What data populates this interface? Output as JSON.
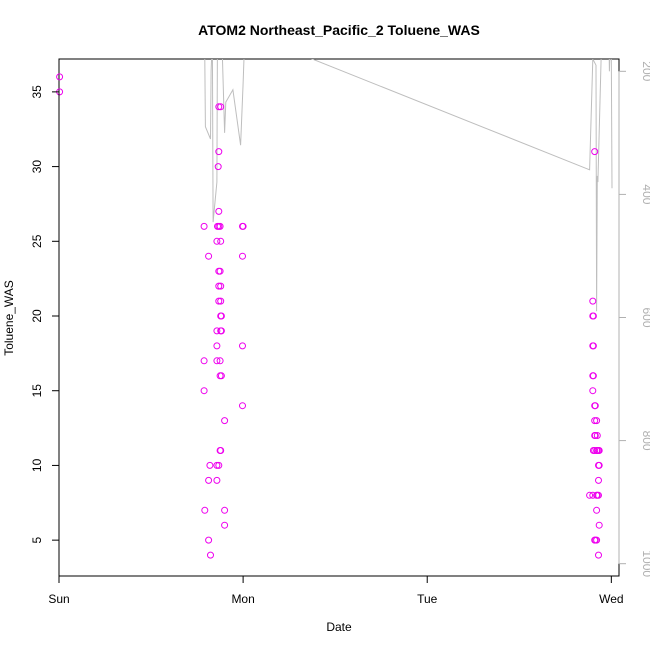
{
  "chart_data": {
    "type": "scatter",
    "title": "ATOM2 Northeast_Pacific_2 Toluene_WAS",
    "xlabel": "Date",
    "ylabel": "Toluene_WAS",
    "x_ticks": [
      "Sun",
      "Mon",
      "Tue",
      "Wed"
    ],
    "xlim": [
      "Sun 00:00",
      "Wed 01:00"
    ],
    "ylim": [
      2.6,
      37.2
    ],
    "y_ticks": [
      5,
      10,
      15,
      20,
      25,
      30,
      35
    ],
    "y2_ticks": [
      200,
      400,
      600,
      800,
      1000
    ],
    "y2lim": [
      1020,
      180
    ],
    "y2_reversed": true,
    "grid": false,
    "point_color": "#ee00ee",
    "line_color": "#bebebe",
    "series": [
      {
        "marker": "open-circle",
        "color": "#ee00ee",
        "points": [
          [
            "Sun 00:05",
            36
          ],
          [
            "Sun 00:05",
            35
          ],
          [
            "Sun 18:55",
            26
          ],
          [
            "Sun 18:55",
            17
          ],
          [
            "Sun 18:55",
            15
          ],
          [
            "Sun 19:00",
            7
          ],
          [
            "Sun 19:30",
            24
          ],
          [
            "Sun 19:30",
            9
          ],
          [
            "Sun 19:30",
            5
          ],
          [
            "Sun 19:40",
            10
          ],
          [
            "Sun 19:45",
            4
          ],
          [
            "Sun 20:35",
            25
          ],
          [
            "Sun 20:35",
            19
          ],
          [
            "Sun 20:35",
            18
          ],
          [
            "Sun 20:35",
            17
          ],
          [
            "Sun 20:35",
            10
          ],
          [
            "Sun 20:35",
            9
          ],
          [
            "Sun 20:40",
            26
          ],
          [
            "Sun 20:45",
            30
          ],
          [
            "Sun 20:50",
            34
          ],
          [
            "Sun 20:50",
            31
          ],
          [
            "Sun 20:50",
            27
          ],
          [
            "Sun 20:50",
            26
          ],
          [
            "Sun 20:50",
            23
          ],
          [
            "Sun 20:50",
            22
          ],
          [
            "Sun 20:50",
            21
          ],
          [
            "Sun 20:50",
            10
          ],
          [
            "Sun 21:00",
            26
          ],
          [
            "Sun 21:00",
            23
          ],
          [
            "Sun 21:00",
            17
          ],
          [
            "Sun 21:00",
            16
          ],
          [
            "Sun 21:00",
            11
          ],
          [
            "Sun 21:05",
            34
          ],
          [
            "Sun 21:05",
            25
          ],
          [
            "Sun 21:05",
            22
          ],
          [
            "Sun 21:05",
            21
          ],
          [
            "Sun 21:05",
            20
          ],
          [
            "Sun 21:05",
            19
          ],
          [
            "Sun 21:05",
            11
          ],
          [
            "Sun 21:10",
            20
          ],
          [
            "Sun 21:10",
            19
          ],
          [
            "Sun 21:10",
            16
          ],
          [
            "Sun 21:35",
            13
          ],
          [
            "Sun 21:35",
            7
          ],
          [
            "Sun 21:35",
            6
          ],
          [
            "Sun 23:55",
            26
          ],
          [
            "Sun 23:55",
            24
          ],
          [
            "Sun 23:55",
            18
          ],
          [
            "Sun 23:55",
            14
          ],
          [
            "Mon 00:00",
            26
          ],
          [
            "Tue 21:10",
            8
          ],
          [
            "Tue 21:35",
            21
          ],
          [
            "Tue 21:35",
            20
          ],
          [
            "Tue 21:35",
            18
          ],
          [
            "Tue 21:35",
            16
          ],
          [
            "Tue 21:35",
            15
          ],
          [
            "Tue 21:35",
            8
          ],
          [
            "Tue 21:40",
            20
          ],
          [
            "Tue 21:40",
            18
          ],
          [
            "Tue 21:40",
            16
          ],
          [
            "Tue 21:40",
            11
          ],
          [
            "Tue 21:50",
            31
          ],
          [
            "Tue 21:50",
            14
          ],
          [
            "Tue 21:50",
            13
          ],
          [
            "Tue 21:50",
            12
          ],
          [
            "Tue 21:50",
            11
          ],
          [
            "Tue 21:50",
            5
          ],
          [
            "Tue 21:55",
            14
          ],
          [
            "Tue 21:55",
            12
          ],
          [
            "Tue 21:55",
            5
          ],
          [
            "Tue 22:05",
            13
          ],
          [
            "Tue 22:05",
            11
          ],
          [
            "Tue 22:05",
            8
          ],
          [
            "Tue 22:05",
            7
          ],
          [
            "Tue 22:05",
            5
          ],
          [
            "Tue 22:10",
            12
          ],
          [
            "Tue 22:10",
            11
          ],
          [
            "Tue 22:10",
            8
          ],
          [
            "Tue 22:20",
            11
          ],
          [
            "Tue 22:20",
            10
          ],
          [
            "Tue 22:20",
            9
          ],
          [
            "Tue 22:20",
            8
          ],
          [
            "Tue 22:20",
            4
          ],
          [
            "Tue 22:25",
            11
          ],
          [
            "Tue 22:25",
            10
          ],
          [
            "Tue 22:25",
            6
          ]
        ]
      },
      {
        "marker": "line",
        "axis": "right",
        "color": "#bebebe",
        "points": [
          [
            "Sun 19:00",
            180
          ],
          [
            "Sun 19:05",
            290
          ],
          [
            "Sun 19:45",
            310
          ],
          [
            "Sun 19:50",
            200
          ],
          [
            "Sun 19:55",
            170
          ],
          [
            "Sun 20:00",
            160
          ],
          [
            "Sun 20:05",
            445
          ],
          [
            "Sun 20:35",
            380
          ],
          [
            "Sun 20:40",
            120
          ],
          [
            "Sun 21:00",
            150
          ],
          [
            "Sun 21:10",
            120
          ],
          [
            "Sun 21:35",
            300
          ],
          [
            "Sun 21:45",
            250
          ],
          [
            "Sun 22:40",
            230
          ],
          [
            "Sun 23:40",
            320
          ],
          [
            "Mon 00:00",
            220
          ],
          [
            "Mon 00:10",
            160
          ],
          [
            "Mon 08:00",
            175
          ],
          [
            "Tue 21:10",
            360
          ],
          [
            "Tue 21:35",
            180
          ],
          [
            "Tue 22:00",
            190
          ],
          [
            "Tue 22:05",
            590
          ],
          [
            "Tue 22:10",
            370
          ],
          [
            "Tue 22:15",
            380
          ],
          [
            "Tue 22:40",
            180
          ],
          [
            "Tue 23:40",
            130
          ],
          [
            "Tue 23:45",
            200
          ],
          [
            "Tue 23:50",
            160
          ],
          [
            "Wed 00:00",
            170
          ],
          [
            "Wed 00:05",
            390
          ]
        ]
      }
    ]
  }
}
